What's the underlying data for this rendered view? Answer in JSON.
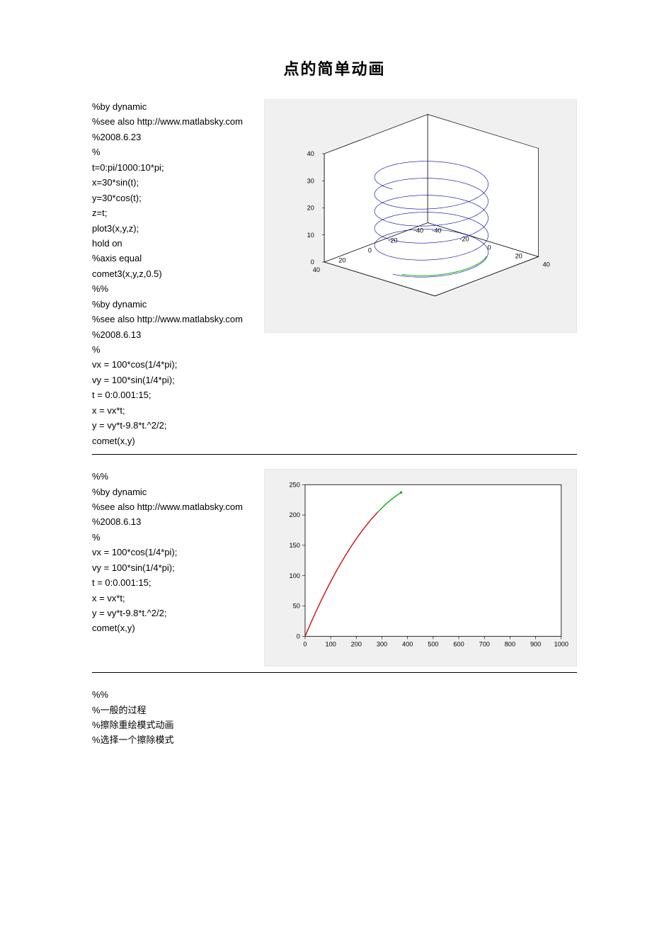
{
  "title": "点的简单动画",
  "section1": {
    "code": [
      "%by dynamic",
      "%see also http://www.matlabsky.com",
      "%2008.6.23",
      "%",
      "t=0:pi/1000:10*pi;",
      "x=30*sin(t);",
      "y=30*cos(t);",
      "z=t;",
      "plot3(x,y,z);",
      "hold on",
      "%axis equal",
      "comet3(x,y,z,0.5)",
      "%%",
      "%by dynamic",
      "%see also http://www.matlabsky.com",
      "%2008.6.13",
      "%",
      "vx = 100*cos(1/4*pi);",
      "vy = 100*sin(1/4*pi);",
      "t = 0:0.001:15;",
      "x = vx*t;",
      "y = vy*t-9.8*t.^2/2;",
      "comet(x,y)"
    ],
    "figure": {
      "type": "3d-helix",
      "background_color": "#f0f0f0",
      "plot_area_color": "#ffffff",
      "axis_color": "#000000",
      "grid_color": "#cccccc",
      "helix_color": "#0000aa",
      "comet_tail_color": "#00aa00",
      "x_range": [
        -40,
        40
      ],
      "x_ticks": [
        -40,
        -20,
        0,
        20,
        40
      ],
      "y_range": [
        -40,
        40
      ],
      "y_ticks": [
        -40,
        -20,
        0,
        20,
        40
      ],
      "z_range": [
        0,
        40
      ],
      "z_ticks": [
        0,
        10,
        20,
        30,
        40
      ],
      "tick_fontsize": 9,
      "helix_radius": 30,
      "helix_turns": 5,
      "helix_z_max": 31.4,
      "line_width": 0.6
    }
  },
  "section2": {
    "code": [
      "%%",
      "%by dynamic",
      "%see also http://www.matlabsky.com",
      "%2008.6.13",
      "%",
      "vx = 100*cos(1/4*pi);",
      "vy = 100*sin(1/4*pi);",
      "t = 0:0.001:15;",
      "x = vx*t;",
      "y = vy*t-9.8*t.^2/2;",
      "comet(x,y)"
    ],
    "figure": {
      "type": "2d-parabola",
      "background_color": "#f0f0f0",
      "plot_area_color": "#ffffff",
      "axis_color": "#000000",
      "tick_color": "#000000",
      "body_color": "#cc0000",
      "tail_color": "#00aa00",
      "x_range": [
        0,
        1000
      ],
      "x_ticks": [
        0,
        100,
        200,
        300,
        400,
        500,
        600,
        700,
        800,
        900,
        1000
      ],
      "y_range": [
        0,
        250
      ],
      "y_ticks": [
        0,
        50,
        100,
        150,
        200,
        250
      ],
      "tick_fontsize": 9,
      "line_width": 1.0,
      "vx": 70.71,
      "vy": 70.71,
      "g": 9.8,
      "t_body_end": 4.0,
      "t_tail_end": 5.3,
      "t_max": 15
    }
  },
  "section3": {
    "code": [
      "%%",
      "%一般的过程",
      "%擦除重绘模式动画",
      "%选择一个擦除模式"
    ]
  }
}
